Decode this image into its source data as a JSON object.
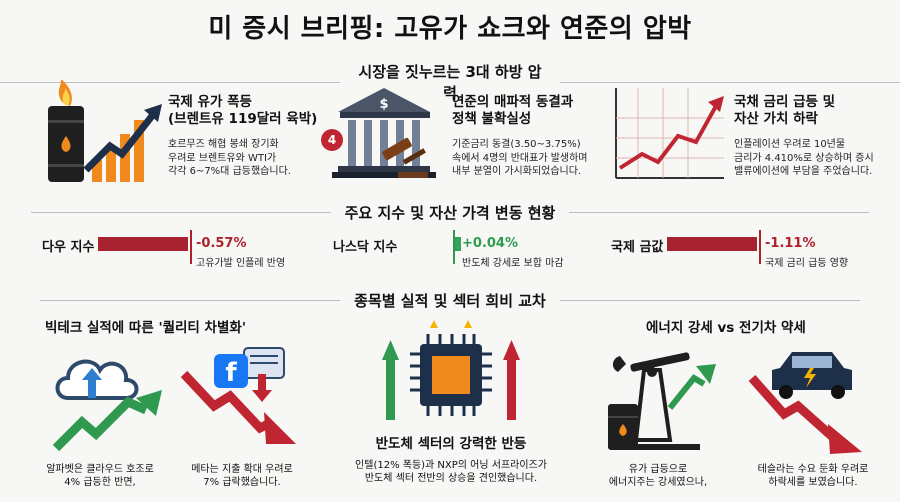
{
  "title": "미 증시 브리핑: 고유가 쇼크와 연준의 압박",
  "section1": {
    "heading": "시장을 짓누르는 3대 하방 압력",
    "items": [
      {
        "title_line1": "국제 유가 폭등",
        "title_line2": "(브렌트유 119달러 육박)",
        "desc_line1": "호르무즈 해협 봉쇄 장기화",
        "desc_line2": "우려로 브렌트유와 WTI가",
        "desc_line3": "각각 6~7%대 급등했습니다."
      },
      {
        "title_line1": "연준의 매파적 동결과",
        "title_line2": "정책 불확실성",
        "desc_line1": "기준금리 동결(3.50~3.75%)",
        "desc_line2": "속에서 4명의 반대표가 발생하며",
        "desc_line3": "내부 분열이 가시화되었습니다.",
        "badge": "4"
      },
      {
        "title_line1": "국채 금리 급등 및",
        "title_line2": "자산 가치 하락",
        "desc_line1": "인플레이션 우려로 10년물",
        "desc_line2": "금리가 4.410%로 상승하며 증시",
        "desc_line3": "밸류에이션에 부담을 주었습니다."
      }
    ]
  },
  "section2": {
    "heading": "주요 지수 및 자산 가격 변동 현황",
    "indices": [
      {
        "name": "다우 지수",
        "change": "-0.57%",
        "note": "고유가발 인플레 반영",
        "direction": "down",
        "value": -0.57
      },
      {
        "name": "나스닥 지수",
        "change": "+0.04%",
        "note": "반도체 강세로 보합 마감",
        "direction": "up",
        "value": 0.04
      },
      {
        "name": "국제 금값",
        "change": "-1.11%",
        "note": "국제 금리 급등 영향",
        "direction": "down",
        "value": -1.11
      }
    ]
  },
  "section3": {
    "heading": "종목별 실적 및 섹터 희비 교차",
    "left_title": "빅테크 실적에 따른 '퀄리티 차별화'",
    "center_title": "반도체 섹터의 강력한 반등",
    "right_title": "에너지 강세 vs 전기차 약세",
    "captions": {
      "alphabet_line1": "알파벳은 클라우드 호조로",
      "alphabet_line2": "4% 급등한 반면,",
      "meta_line1": "메타는 지출 확대 우려로",
      "meta_line2": "7% 급락했습니다.",
      "semi_line1": "인텔(12% 폭등)과 NXP의 어닝 서프라이즈가",
      "semi_line2": "반도체 섹터 전반의 상승을 견인했습니다.",
      "energy_line1": "유가 급등으로",
      "energy_line2": "에너지주는 강세였으나,",
      "tesla_line1": "테슬라는 수요 둔화 우려로",
      "tesla_line2": "하락세를 보였습니다."
    },
    "icons": {
      "cloud": "cloud-upload-icon",
      "facebook": "facebook-logo-icon",
      "fb_letter": "f"
    }
  },
  "colors": {
    "red": "#b0202b",
    "green": "#2f9a4f",
    "orange": "#f08a1c",
    "navy": "#1e2f4a"
  }
}
